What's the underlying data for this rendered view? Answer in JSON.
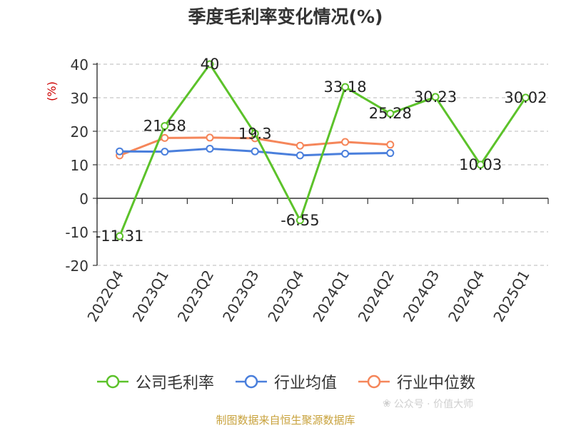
{
  "title": "季度毛利率变化情况(%)",
  "source_note": "制图数据来自恒生聚源数据库",
  "watermark": "公众号 · 价值大师",
  "colors": {
    "company": "#5cc22a",
    "industry_avg": "#4a7fdc",
    "industry_median": "#f5865a",
    "axis_unit": "#cc0000"
  },
  "chart_data": {
    "type": "line",
    "title": "季度毛利率变化情况(%)",
    "ylabel": "(%)",
    "ylim": [
      -20,
      40
    ],
    "yticks": [
      40,
      30,
      20,
      10,
      0,
      -10,
      -20
    ],
    "grid": true,
    "legend_position": "bottom",
    "categories": [
      "2022Q4",
      "2023Q1",
      "2023Q2",
      "2023Q3",
      "2023Q4",
      "2024Q1",
      "2024Q2",
      "2024Q3",
      "2024Q4",
      "2025Q1"
    ],
    "series": [
      {
        "name": "公司毛利率",
        "color": "#5cc22a",
        "values": [
          -11.31,
          21.58,
          40,
          19.3,
          -6.55,
          33.18,
          25.28,
          30.23,
          10.03,
          30.02
        ],
        "labels": [
          "-11.31",
          "21.58",
          "40",
          "19.3",
          "-6.55",
          "33.18",
          "25.28",
          "30.23",
          "10.03",
          "30.02"
        ]
      },
      {
        "name": "行业均值",
        "color": "#4a7fdc",
        "values": [
          14.0,
          13.9,
          14.8,
          14.0,
          12.8,
          13.3,
          13.5,
          null,
          null,
          null
        ]
      },
      {
        "name": "行业中位数",
        "color": "#f5865a",
        "values": [
          12.8,
          18.0,
          18.1,
          17.9,
          15.7,
          16.8,
          16.0,
          null,
          null,
          null
        ]
      }
    ]
  }
}
